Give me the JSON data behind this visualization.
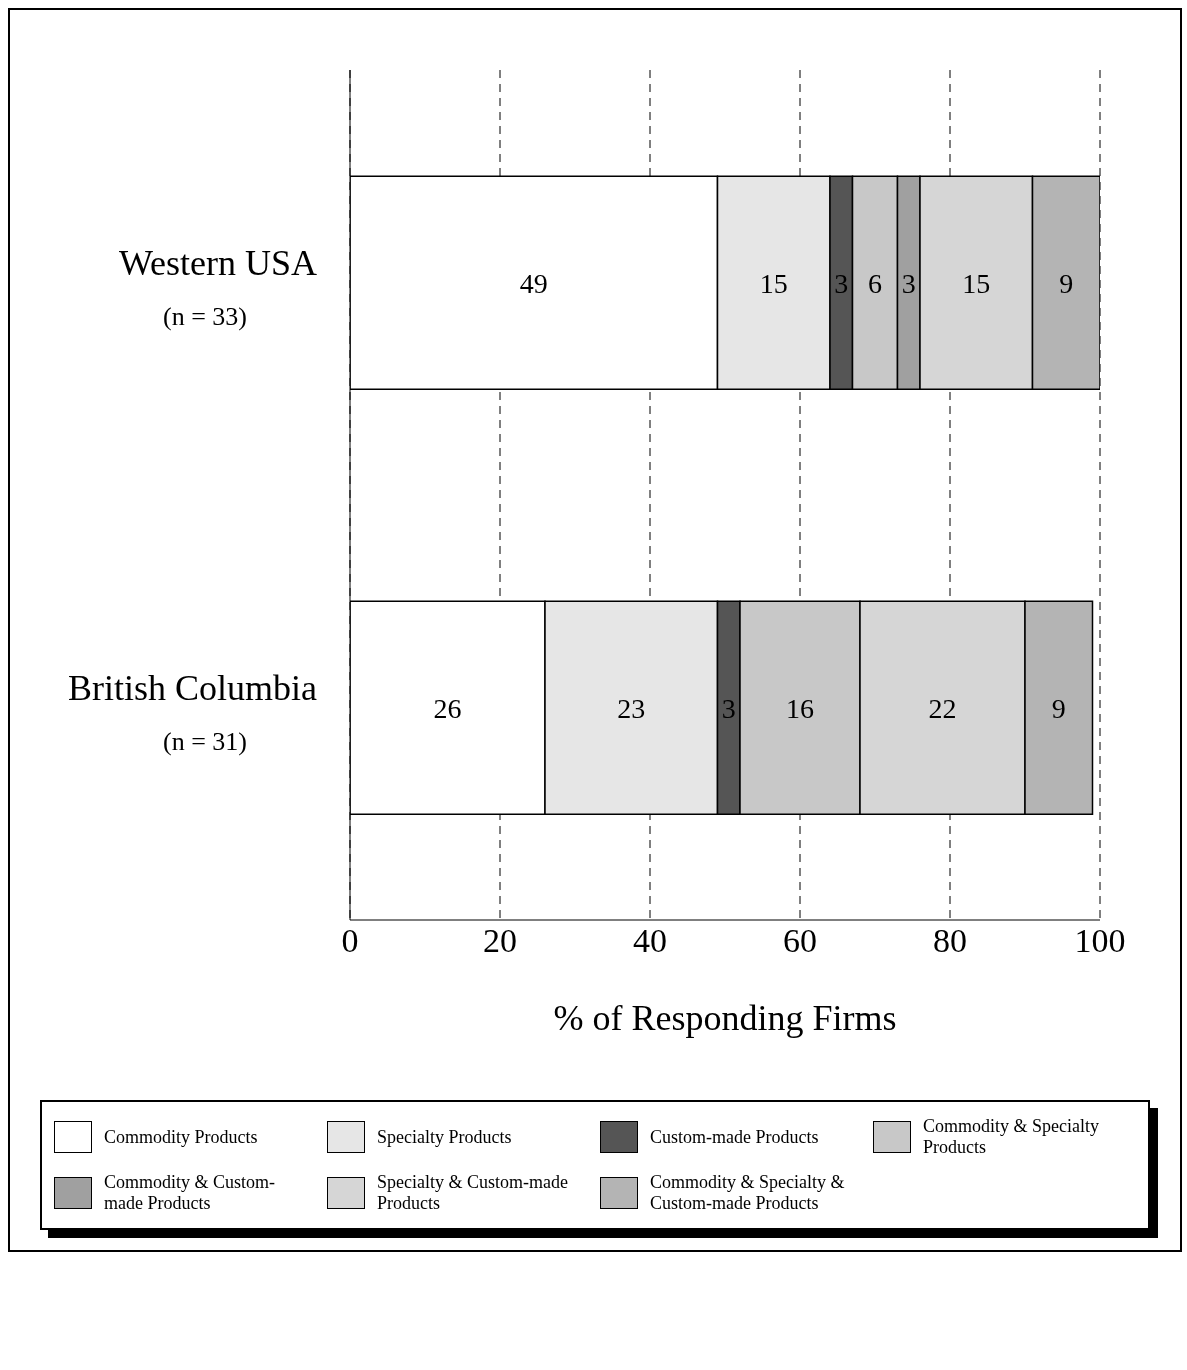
{
  "chart_data": {
    "type": "bar",
    "orientation": "horizontal",
    "stacked": true,
    "data_labels": true,
    "categories": [
      "Western USA (n = 33)",
      "British Columbia (n = 31)"
    ],
    "series": [
      {
        "name": "Commodity Products",
        "color": "#ffffff",
        "values": [
          49,
          26
        ]
      },
      {
        "name": "Specialty Products",
        "color": "#e6e6e6",
        "values": [
          15,
          23
        ]
      },
      {
        "name": "Custom-made Products",
        "color": "#555555",
        "values": [
          3,
          3
        ]
      },
      {
        "name": "Commodity & Specialty Products",
        "color": "#c8c8c8",
        "values": [
          6,
          16
        ]
      },
      {
        "name": "Commodity & Custom-made Products",
        "color": "#a0a0a0",
        "values": [
          3,
          null
        ]
      },
      {
        "name": "Specialty & Custom-made Products",
        "color": "#d6d6d6",
        "values": [
          15,
          22
        ]
      },
      {
        "name": "Commodity & Specialty & Custom-made Products",
        "color": "#b4b4b4",
        "values": [
          9,
          9
        ]
      }
    ],
    "xlabel": "% of Responding Firms",
    "xlim": [
      0,
      100
    ],
    "xticks": [
      0,
      20,
      40,
      60,
      80,
      100
    ],
    "grid": "x",
    "legend": "bottom"
  }
}
